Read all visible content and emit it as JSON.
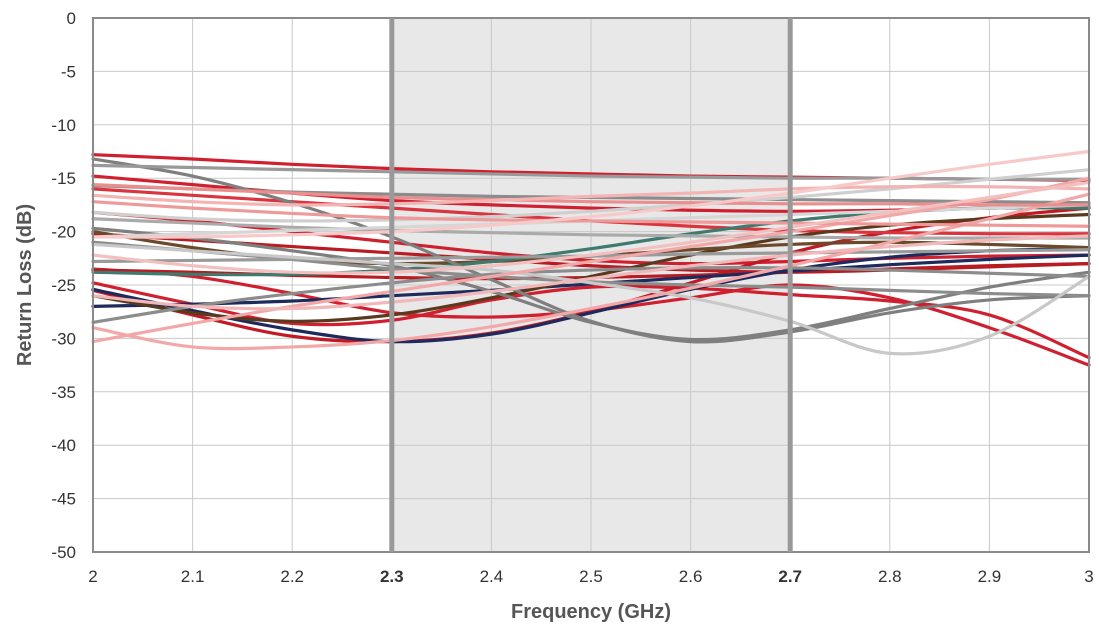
{
  "chart_data": {
    "type": "line",
    "title": "",
    "xlabel": "Frequency (GHz)",
    "ylabel": "Return Loss (dB)",
    "xlim": [
      2,
      3
    ],
    "ylim": [
      -50,
      0
    ],
    "x_ticks": [
      "2",
      "2.1",
      "2.2",
      "2.3",
      "2.4",
      "2.5",
      "2.6",
      "2.7",
      "2.8",
      "2.9",
      "3"
    ],
    "x_tick_values": [
      2,
      2.1,
      2.2,
      2.3,
      2.4,
      2.5,
      2.6,
      2.7,
      2.8,
      2.9,
      3
    ],
    "bold_x_ticks": [
      "2.3",
      "2.7"
    ],
    "y_ticks": [
      "0",
      "-5",
      "-10",
      "-15",
      "-20",
      "-25",
      "-30",
      "-35",
      "-40",
      "-45",
      "-50"
    ],
    "y_tick_values": [
      0,
      -5,
      -10,
      -15,
      -20,
      -25,
      -30,
      -35,
      -40,
      -45,
      -50
    ],
    "grid": true,
    "legend": "none",
    "highlight_band": {
      "x_start": 2.3,
      "x_end": 2.7,
      "color": "#e8e8e8",
      "edge_color": "#999999"
    },
    "x": [
      2.0,
      2.1,
      2.2,
      2.3,
      2.4,
      2.5,
      2.6,
      2.7,
      2.8,
      2.9,
      3.0
    ],
    "series": [
      {
        "color": "#d01f2f",
        "values": [
          -12.8,
          -13.2,
          -13.7,
          -14.1,
          -14.4,
          -14.6,
          -14.8,
          -14.9,
          -15.0,
          -15.1,
          -15.2
        ]
      },
      {
        "color": "#d01f2f",
        "values": [
          -14.8,
          -15.6,
          -16.4,
          -17.1,
          -17.5,
          -17.8,
          -18.0,
          -18.1,
          -18.0,
          -17.8,
          -17.6
        ]
      },
      {
        "color": "#d01f2f",
        "values": [
          -18.2,
          -19.0,
          -20.0,
          -21.0,
          -22.0,
          -22.7,
          -23.0,
          -22.8,
          -22.5,
          -22.3,
          -22.2
        ]
      },
      {
        "color": "#d01f2f",
        "values": [
          -24.8,
          -26.8,
          -28.6,
          -28.3,
          -26.4,
          -25.2,
          -25.3,
          -25.9,
          -26.5,
          -27.8,
          -31.8
        ]
      },
      {
        "color": "#d01f2f",
        "values": [
          -23.5,
          -24.2,
          -25.8,
          -27.6,
          -28.0,
          -27.4,
          -26.2,
          -25.0,
          -26.2,
          -29.0,
          -32.5
        ]
      },
      {
        "color": "#c21a25",
        "values": [
          -25.5,
          -27.8,
          -29.8,
          -30.3,
          -29.5,
          -27.5,
          -24.8,
          -22.0,
          -20.0,
          -18.7,
          -17.8
        ]
      },
      {
        "color": "#b81c23",
        "values": [
          -23.6,
          -23.8,
          -24.1,
          -24.3,
          -24.4,
          -24.3,
          -24.1,
          -23.8,
          -23.5,
          -23.2,
          -23.0
        ]
      },
      {
        "color": "#b81c23",
        "values": [
          -20.2,
          -20.8,
          -21.4,
          -22.0,
          -22.6,
          -23.2,
          -23.6,
          -23.8,
          -23.6,
          -23.3,
          -23.0
        ]
      },
      {
        "color": "#d9353f",
        "values": [
          -16.0,
          -16.6,
          -17.2,
          -17.8,
          -18.4,
          -19.0,
          -19.5,
          -19.9,
          -20.1,
          -20.2,
          -20.2
        ]
      },
      {
        "color": "#1f2a5c",
        "values": [
          -25.4,
          -27.4,
          -29.2,
          -30.3,
          -29.6,
          -27.6,
          -25.4,
          -23.6,
          -22.4,
          -21.8,
          -21.6
        ]
      },
      {
        "color": "#1f2a5c",
        "values": [
          -27.0,
          -26.8,
          -26.5,
          -26.0,
          -25.5,
          -24.9,
          -24.3,
          -23.7,
          -23.1,
          -22.6,
          -22.2
        ]
      },
      {
        "color": "#5a3a1e",
        "values": [
          -26.0,
          -27.6,
          -28.4,
          -27.8,
          -26.2,
          -24.2,
          -22.2,
          -20.5,
          -19.4,
          -18.8,
          -18.4
        ]
      },
      {
        "color": "#6a4a2a",
        "values": [
          -20.0,
          -21.5,
          -22.6,
          -23.0,
          -22.8,
          -22.3,
          -21.7,
          -21.2,
          -21.0,
          -21.2,
          -21.5
        ]
      },
      {
        "color": "#3f7a6e",
        "values": [
          -23.8,
          -24.0,
          -24.0,
          -23.6,
          -22.8,
          -21.6,
          -20.2,
          -19.0,
          -18.2,
          -17.8,
          -17.8
        ]
      },
      {
        "color": "#7f7f7f",
        "values": [
          -13.2,
          -14.8,
          -17.3,
          -20.5,
          -24.5,
          -28.4,
          -30.3,
          -29.4,
          -27.6,
          -26.4,
          -26.0
        ]
      },
      {
        "color": "#7f7f7f",
        "values": [
          -19.7,
          -20.6,
          -21.8,
          -23.2,
          -25.6,
          -28.5,
          -30.1,
          -29.2,
          -27.2,
          -25.2,
          -23.8
        ]
      },
      {
        "color": "#8c8c8c",
        "values": [
          -21.0,
          -21.8,
          -22.6,
          -23.5,
          -24.2,
          -24.7,
          -25.0,
          -25.2,
          -25.5,
          -25.8,
          -26.0
        ]
      },
      {
        "color": "#8c8c8c",
        "values": [
          -15.7,
          -16.0,
          -16.3,
          -16.5,
          -16.7,
          -16.8,
          -16.9,
          -17.0,
          -17.1,
          -17.2,
          -17.3
        ]
      },
      {
        "color": "#9a9a9a",
        "values": [
          -22.8,
          -22.7,
          -22.6,
          -22.5,
          -22.4,
          -22.3,
          -22.1,
          -22.0,
          -21.9,
          -21.8,
          -21.7
        ]
      },
      {
        "color": "#8c8c8c",
        "values": [
          -28.5,
          -27.0,
          -25.8,
          -24.8,
          -24.0,
          -23.6,
          -23.4,
          -23.4,
          -23.6,
          -23.9,
          -24.2
        ]
      },
      {
        "color": "#999999",
        "values": [
          -13.8,
          -14.0,
          -14.2,
          -14.4,
          -14.6,
          -14.8,
          -14.9,
          -15.0,
          -15.0,
          -15.1,
          -15.1
        ]
      },
      {
        "color": "#aaaaaa",
        "values": [
          -18.8,
          -19.2,
          -19.6,
          -19.9,
          -20.1,
          -20.3,
          -20.4,
          -20.5,
          -20.6,
          -20.6,
          -20.6
        ]
      },
      {
        "color": "#c8c8c8",
        "values": [
          -21.2,
          -21.8,
          -22.4,
          -23.0,
          -23.6,
          -24.8,
          -26.2,
          -28.4,
          -31.4,
          -29.8,
          -24.2
        ]
      },
      {
        "color": "#cfcfcf",
        "values": [
          -18.2,
          -18.8,
          -19.0,
          -18.9,
          -18.6,
          -18.1,
          -17.5,
          -16.8,
          -16.0,
          -15.1,
          -14.2
        ]
      },
      {
        "color": "#d6d6d6",
        "values": [
          -20.5,
          -20.2,
          -19.9,
          -19.6,
          -19.3,
          -19.0,
          -18.7,
          -18.4,
          -18.1,
          -17.8,
          -17.5
        ]
      },
      {
        "color": "#f2a8a8",
        "values": [
          -30.3,
          -28.6,
          -27.0,
          -25.6,
          -24.2,
          -22.8,
          -21.4,
          -20.0,
          -18.5,
          -17.0,
          -15.0
        ]
      },
      {
        "color": "#f2a8a8",
        "values": [
          -29.0,
          -30.8,
          -30.8,
          -30.2,
          -28.9,
          -27.2,
          -25.3,
          -23.2,
          -21.0,
          -18.8,
          -16.5
        ]
      },
      {
        "color": "#ee9a9a",
        "values": [
          -17.2,
          -17.8,
          -18.3,
          -18.7,
          -18.9,
          -19.0,
          -19.1,
          -19.2,
          -19.3,
          -19.4,
          -19.5
        ]
      },
      {
        "color": "#e98f8f",
        "values": [
          -15.6,
          -16.0,
          -16.4,
          -16.8,
          -17.0,
          -17.2,
          -17.3,
          -17.4,
          -17.4,
          -17.5,
          -17.5
        ]
      },
      {
        "color": "#f4b4b4",
        "values": [
          -16.6,
          -17.2,
          -17.5,
          -17.4,
          -17.1,
          -16.7,
          -16.4,
          -16.0,
          -15.8,
          -15.8,
          -16.0
        ]
      },
      {
        "color": "#f0b8b8",
        "values": [
          -26.0,
          -27.0,
          -27.2,
          -26.6,
          -25.6,
          -24.4,
          -23.2,
          -22.2,
          -21.4,
          -20.8,
          -20.4
        ]
      },
      {
        "color": "#f3c0c0",
        "values": [
          -22.2,
          -23.2,
          -23.8,
          -23.8,
          -23.2,
          -22.2,
          -21.0,
          -19.6,
          -18.2,
          -16.8,
          -15.4
        ]
      },
      {
        "color": "#f7c9c9",
        "values": [
          -20.5,
          -20.5,
          -20.3,
          -20.0,
          -19.4,
          -18.6,
          -17.6,
          -16.4,
          -15.0,
          -13.7,
          -12.5
        ]
      }
    ]
  }
}
